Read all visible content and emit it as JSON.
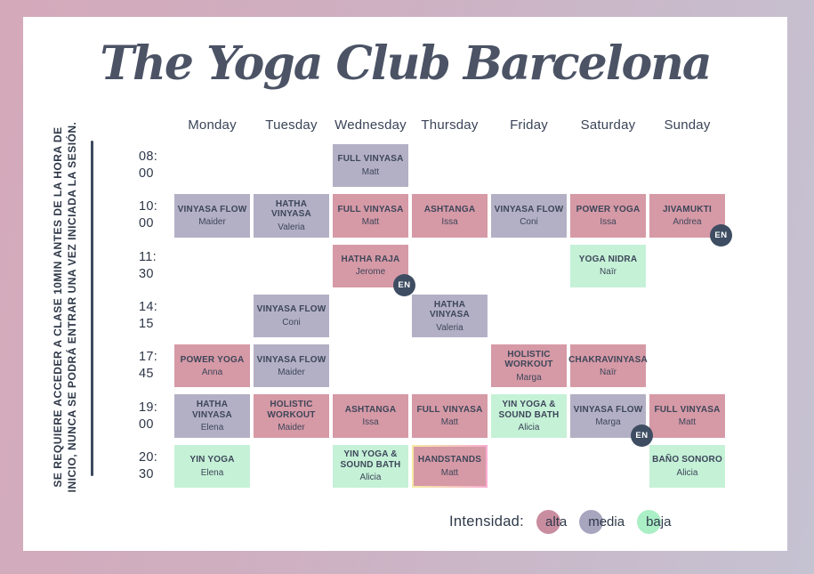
{
  "title": "The Yoga Club Barcelona",
  "side_note": {
    "line1": "SE REQUIERE ACCEDER A CLASE 10MIN ANTES DE LA HORA DE",
    "line2": "INICIO, NUNCA SE PODRÁ ENTRAR UNA VEZ INICIADA LA SESIÓN."
  },
  "days": [
    "Monday",
    "Tuesday",
    "Wednesday",
    "Thursday",
    "Friday",
    "Saturday",
    "Sunday"
  ],
  "badge_label": "EN",
  "colors": {
    "alta": "#d699a6",
    "media": "#b3b0c5",
    "baja": "#c5f1d7",
    "badge": "#3e4d62",
    "highlight_border_start": "#f5eba4",
    "highlight_border_end": "#f8abd0",
    "frame_left": "#d4aaba",
    "frame_right": "#c5c2d2",
    "text_dark": "#3d4659"
  },
  "rows": [
    {
      "time_h": "08:",
      "time_m": "00",
      "cells": [
        null,
        null,
        {
          "name": "FULL VINYASA",
          "teacher": "Matt",
          "intensity": "media"
        },
        null,
        null,
        null,
        null
      ]
    },
    {
      "time_h": "10:",
      "time_m": "00",
      "cells": [
        {
          "name": "VINYASA FLOW",
          "teacher": "Maider",
          "intensity": "media"
        },
        {
          "name": "HATHA VINYASA",
          "teacher": "Valeria",
          "intensity": "media"
        },
        {
          "name": "FULL VINYASA",
          "teacher": "Matt",
          "intensity": "alta"
        },
        {
          "name": "ASHTANGA",
          "teacher": "Issa",
          "intensity": "alta"
        },
        {
          "name": "VINYASA FLOW",
          "teacher": "Coni",
          "intensity": "media"
        },
        {
          "name": "POWER YOGA",
          "teacher": "Issa",
          "intensity": "alta"
        },
        {
          "name": "JIVAMUKTI",
          "teacher": "Andrea",
          "intensity": "alta",
          "badge": "EN"
        }
      ]
    },
    {
      "time_h": "11:",
      "time_m": "30",
      "cells": [
        null,
        null,
        {
          "name": "HATHA RAJA",
          "teacher": "Jerome",
          "intensity": "alta",
          "badge": "EN"
        },
        null,
        null,
        {
          "name": "YOGA NIDRA",
          "teacher": "Naïr",
          "intensity": "baja"
        },
        null
      ]
    },
    {
      "time_h": "14:",
      "time_m": "15",
      "cells": [
        null,
        {
          "name": "VINYASA FLOW",
          "teacher": "Coni",
          "intensity": "media"
        },
        null,
        {
          "name": "HATHA VINYASA",
          "teacher": "Valeria",
          "intensity": "media"
        },
        null,
        null,
        null
      ]
    },
    {
      "time_h": "17:",
      "time_m": "45",
      "cells": [
        {
          "name": "POWER YOGA",
          "teacher": "Anna",
          "intensity": "alta"
        },
        {
          "name": "VINYASA FLOW",
          "teacher": "Maider",
          "intensity": "media"
        },
        null,
        null,
        {
          "name": "HOLISTIC WORKOUT",
          "teacher": "Marga",
          "intensity": "alta"
        },
        {
          "name": "CHAKRAVINYASA",
          "teacher": "Naïr",
          "intensity": "alta"
        },
        null
      ]
    },
    {
      "time_h": "19:",
      "time_m": "00",
      "cells": [
        {
          "name": "HATHA VINYASA",
          "teacher": "Elena",
          "intensity": "media"
        },
        {
          "name": "HOLISTIC WORKOUT",
          "teacher": "Maider",
          "intensity": "alta"
        },
        {
          "name": "ASHTANGA",
          "teacher": "Issa",
          "intensity": "alta"
        },
        {
          "name": "FULL VINYASA",
          "teacher": "Matt",
          "intensity": "alta"
        },
        {
          "name": "YIN YOGA & SOUND BATH",
          "teacher": "Alicia",
          "intensity": "baja"
        },
        {
          "name": "VINYASA FLOW",
          "teacher": "Marga",
          "intensity": "media",
          "badge": "EN"
        },
        {
          "name": "FULL VINYASA",
          "teacher": "Matt",
          "intensity": "alta"
        }
      ]
    },
    {
      "time_h": "20:",
      "time_m": "30",
      "cells": [
        {
          "name": "YIN YOGA",
          "teacher": "Elena",
          "intensity": "baja"
        },
        null,
        {
          "name": "YIN YOGA & SOUND BATH",
          "teacher": "Alicia",
          "intensity": "baja"
        },
        {
          "name": "HANDSTANDS",
          "teacher": "Matt",
          "intensity": "alta",
          "highlight": true
        },
        null,
        null,
        {
          "name": "BAÑO SONORO",
          "teacher": "Alicia",
          "intensity": "baja"
        }
      ]
    }
  ],
  "legend": {
    "label": "Intensidad:",
    "items": [
      {
        "label": "alta",
        "color": "#c98da0"
      },
      {
        "label": "media",
        "color": "#a8a5bf"
      },
      {
        "label": "baja",
        "color": "#abefc6"
      }
    ]
  }
}
